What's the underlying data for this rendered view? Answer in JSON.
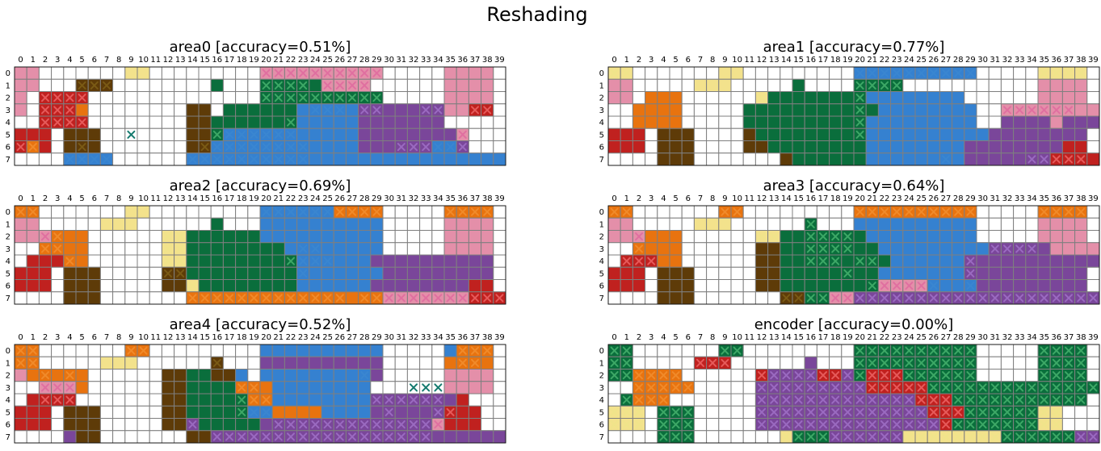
{
  "title": "Reshading",
  "colors": {
    "grid": "#7f7f7f",
    "empty": "#ffffff",
    "palette": {
      ".": "#ffffff",
      "p": "#e48fa9",
      "y": "#f3e28c",
      "o": "#e8730f",
      "r": "#c0211f",
      "b": "#5e3b08",
      "g": "#0a6e3c",
      "u": "#3581d0",
      "v": "#7a469a"
    },
    "cross": {
      "p": "#e06fa0",
      "y": "#f0e48a",
      "o": "#f08a2a",
      "r": "#e65a5a",
      "b": "#7a5a15",
      "g": "#3da866",
      "u": "#3a86d0",
      "v": "#9a6ac0",
      "x": "#157a6e"
    }
  },
  "chart_data": [
    {
      "type": "heatmap",
      "title": "area0 [accuracy=0.51%]",
      "x": [
        "0",
        "1",
        "2",
        "3",
        "4",
        "5",
        "6",
        "7",
        "8",
        "9",
        "10",
        "11",
        "12",
        "13",
        "14",
        "15",
        "16",
        "17",
        "18",
        "19",
        "20",
        "21",
        "22",
        "23",
        "24",
        "25",
        "26",
        "27",
        "28",
        "29",
        "30",
        "31",
        "32",
        "33",
        "34",
        "35",
        "36",
        "37",
        "38",
        "39"
      ],
      "y": [
        "0",
        "1",
        "2",
        "3",
        "4",
        "5",
        "6",
        "7"
      ],
      "cells": [
        "pp.......yy.........pppppppppp.....pppp.",
        "pp...bbb........g...gggggpppp......pppp.",
        "p.rrrr..............gggggggggg.....pppp.",
        "p.rrro........bb.gggggguuuuuvvvvvvvpprr.",
        "..rrrr........bbggggggguuuuuvvvvvvv.....",
        "rrr.bbb.......bbguuuuuuuuuuuvvvvvvvvp...",
        "ror.bbb.......bbuuuuuuuuuuuuvvvvvvuuv...",
        "....uuuu......uuuuuuuuuuuuuuuuuuuuuuuuuu"
      ],
      "marks": [
        "....................xxxxxxxxxx..........",
        ".....xxx............xxxx.xxxx...........",
        "..xxxx..............xxxxxxxxxx..........",
        "..xxx...................xxx.xx...xx..xx.",
        "..xxxx................x.................",
        ".........x......xxxxxxx.............x...",
        "xx...x.........xxxxxxxxx.......xxxxxx...",
        "....xxxx......xxxxxxxxxx................"
      ]
    },
    {
      "type": "heatmap",
      "title": "area1 [accuracy=0.77%]",
      "x": [
        "0",
        "1",
        "2",
        "3",
        "4",
        "5",
        "6",
        "7",
        "8",
        "9",
        "10",
        "11",
        "12",
        "13",
        "14",
        "15",
        "16",
        "17",
        "18",
        "19",
        "20",
        "21",
        "22",
        "23",
        "24",
        "25",
        "26",
        "27",
        "28",
        "29",
        "30",
        "31",
        "32",
        "33",
        "34",
        "35",
        "36",
        "37",
        "38",
        "39"
      ],
      "y": [
        "0",
        "1",
        "2",
        "3",
        "4",
        "5",
        "6",
        "7"
      ],
      "cells": [
        "yy.......yy.........uuuuuuuuuu.....yyyy.",
        "pp.....yyy.....g....gggg...........pppp.",
        "pp.ooo......ygggggggguuuuuuuu......pppp.",
        "..oooo.....ggggggggggguuuuuuuu..pppppppp",
        "..oooo.....gggggggggguuuuuuuuu..vvvvpvvv",
        "rrr.bbb....bggggggggguuuuuuuuuuvvvvvvvv.",
        "rrr.bbb....bbgggggggguuuuuuuuvvvvvvvvrr.",
        "....bbb.......bgggggguuuuuuuuvvvvvvvrrrr"
      ],
      "marks": [
        "xx..................xxxxxxxxxx.....xxxx.",
        "....................xxxx................",
        "............x.......x...................",
        "....................x...........xxxxxx..",
        "....................x...................",
        "....................x...................",
        "........................................",
        "...........................x......xxxxx."
      ]
    },
    {
      "type": "heatmap",
      "title": "area2 [accuracy=0.69%]",
      "x": [
        "0",
        "1",
        "2",
        "3",
        "4",
        "5",
        "6",
        "7",
        "8",
        "9",
        "10",
        "11",
        "12",
        "13",
        "14",
        "15",
        "16",
        "17",
        "18",
        "19",
        "20",
        "21",
        "22",
        "23",
        "24",
        "25",
        "26",
        "27",
        "28",
        "29",
        "30",
        "31",
        "32",
        "33",
        "34",
        "35",
        "36",
        "37",
        "38",
        "39"
      ],
      "y": [
        "0",
        "1",
        "2",
        "3",
        "4",
        "5",
        "6",
        "7"
      ],
      "cells": [
        "oo.......yy.........uuuuuuoooo.....oooo.",
        "pp.....yyy......g...uuuuuuuuuu.....pppp.",
        "pppooo......yygggggguuuuuuuuuu.....pppp.",
        "..oooo......yygggggggguuuuuuuu.....pppp.",
        ".rrroo......yyggggggggguuuuuuvvvvvvvvvv.",
        "rrr.bbb.....bbggggggggguuuuuuuvvvvvvvvv.",
        "rrr.bbb.....bbygggggggguuuuuuvvvvvvvvrr.",
        "....bbb.......ooooooooooooooooppppppprrr"
      ],
      "marks": [
        "oo..................xxxxxxxxxx.....xxxx.",
        "........................................",
        "..xx........xx..........................",
        "..xx........xx.........xx...............",
        "....x.......xx........xxxx..............",
        "............xx.........x................",
        "..............x.........................",
        "..............xxxxxxxxxxxxx.xxxxxxxxxxxx"
      ]
    },
    {
      "type": "heatmap",
      "title": "area3 [accuracy=0.64%]",
      "x": [
        "0",
        "1",
        "2",
        "3",
        "4",
        "5",
        "6",
        "7",
        "8",
        "9",
        "10",
        "11",
        "12",
        "13",
        "14",
        "15",
        "16",
        "17",
        "18",
        "19",
        "20",
        "21",
        "22",
        "23",
        "24",
        "25",
        "26",
        "27",
        "28",
        "29",
        "30",
        "31",
        "32",
        "33",
        "34",
        "35",
        "36",
        "37",
        "38",
        "39"
      ],
      "y": [
        "0",
        "1",
        "2",
        "3",
        "4",
        "5",
        "6",
        "7"
      ],
      "cells": [
        "oo.......oo.........oooooooooo.....oooo.",
        "pp.....yyy......g...uuuuuuuuuu.....pppp.",
        "pppooo......yyggggggguuuuuuuuu.....pppp.",
        "..oooo......bbgggggggguuuuuuuuuvvvvvpppp",
        ".rrroo......bbggggggggguuuuuuvvvvvvvvvvv",
        "rrr.bbb.....bbgggggggguuuuuuuvvvvvvvvvv.",
        "rrr.bbb.....bbggggggggppppuuuuvvvvvvvvv.",
        "....bbb.......bbggppvvvvvvvvvvvvvvvvvvvv"
      ],
      "marks": [
        "oo.......oo.........xxxxxxxxxx.....xxxx.",
        "................x.......................",
        "..x.........xx..xxxx....................",
        "..x.............xxxx...........xxxx.....",
        ".xxx............xxx.xx.......x..........",
        "...................x.........x..........",
        ".....................xxxxxx..x..........",
        "..............xxxxxxxxxxxxxxxxxxxxxxxxxx"
      ]
    },
    {
      "type": "heatmap",
      "title": "area4 [accuracy=0.52%]",
      "x": [
        "0",
        "1",
        "2",
        "3",
        "4",
        "5",
        "6",
        "7",
        "8",
        "9",
        "10",
        "11",
        "12",
        "13",
        "14",
        "15",
        "16",
        "17",
        "18",
        "19",
        "20",
        "21",
        "22",
        "23",
        "24",
        "25",
        "26",
        "27",
        "28",
        "29",
        "30",
        "31",
        "32",
        "33",
        "34",
        "35",
        "36",
        "37",
        "38",
        "39"
      ],
      "y": [
        "0",
        "1",
        "2",
        "3",
        "4",
        "5",
        "6",
        "7"
      ],
      "cells": [
        "oo.......oo.........uuuuuuuuuu.....uooo.",
        "oo.....yyy......b...vvvvvvvvvv.....oooo.",
        "pooooo......bbggbbu.uuuuuuuuuv.....pppp.",
        "..pppo......bbggggooouuuuuuuu......pppp.",
        ".rrrr.......bbgggggoouuuuuuuuvvvvvvvr...",
        "rrr.bbb.....bbggggguuoooouuuuvvvvvvrrr..",
        "rrr.bbb.....bbvgggggvvvvvvvvvvvvvvprrr..",
        "....vbb.......bbvvvvvvvvvvvvvvvvvvvvvvvv"
      ],
      "marks": [
        "xx.......xx.........................xxx.",
        "xx..............x...................xx..",
        "..x.x.......................x...........",
        "..xxx.............xx............xxx.....",
        "..xxx.............xxx........xxxxxx.....",
        "..................xxx.........x...xx....",
        "..............x......xxxxxxxxxxxxxx.....",
        "................xxxxxxxxxxxxxxxxxx......"
      ]
    },
    {
      "type": "heatmap",
      "title": "encoder [accuracy=0.00%]",
      "x": [
        "0",
        "1",
        "2",
        "3",
        "4",
        "5",
        "6",
        "7",
        "8",
        "9",
        "10",
        "11",
        "12",
        "13",
        "14",
        "15",
        "16",
        "17",
        "18",
        "19",
        "20",
        "21",
        "22",
        "23",
        "24",
        "25",
        "26",
        "27",
        "28",
        "29",
        "30",
        "31",
        "32",
        "33",
        "34",
        "35",
        "36",
        "37",
        "38",
        "39"
      ],
      "y": [
        "0",
        "1",
        "2",
        "3",
        "4",
        "5",
        "6",
        "7"
      ],
      "cells": [
        "gg.......gg.........gggggggggg.....gggg.",
        "gg.....rrr......v...gggggggggg.....gggg.",
        "ggoooo......rvvvvrrvgrrrgggggg.....gggg.",
        "..ooooo.....vvvvvvvvvrrrrrgggggggggggggg",
        ".gooo.......vvvvvvvvvvvvvrrrggggggggggg.",
        "yyy.ggg.....vvvvvvvvvvvvvvrrrggggggyy...",
        "yyy.ggg.....vvvvvvvvvvvvvvvrgggggggyy...",
        "....ggg.......ygggvvvvvvyyyyyyyyggggggvv"
      ],
      "marks": [
        "xx.......xx.........xxxxxxxxxx.....xxxx.",
        "xx.....xxx..........xxxxxxxxxx.....xxxx.",
        "xxxxxx......xxxxxxxxxxxxxxxxxx.....xxxx.",
        "..xxxxx.....xxxxxxxxxxxxxxxxxxxxxxxxxxxx",
        ".xxxx.......xxxxxxxxxxxxxxxxxxxxxxxxxxx.",
        "xxx.xxx.....xxxxxxxxxxxxxxxxxxxxxxxxx...",
        "xxx.xxx.....xxxxxxxxxxxxxxxxxxxxxxxxx...",
        "....xxx.......xxxxxxxxxxxxxxxxxxxxxxxxxx"
      ]
    }
  ]
}
